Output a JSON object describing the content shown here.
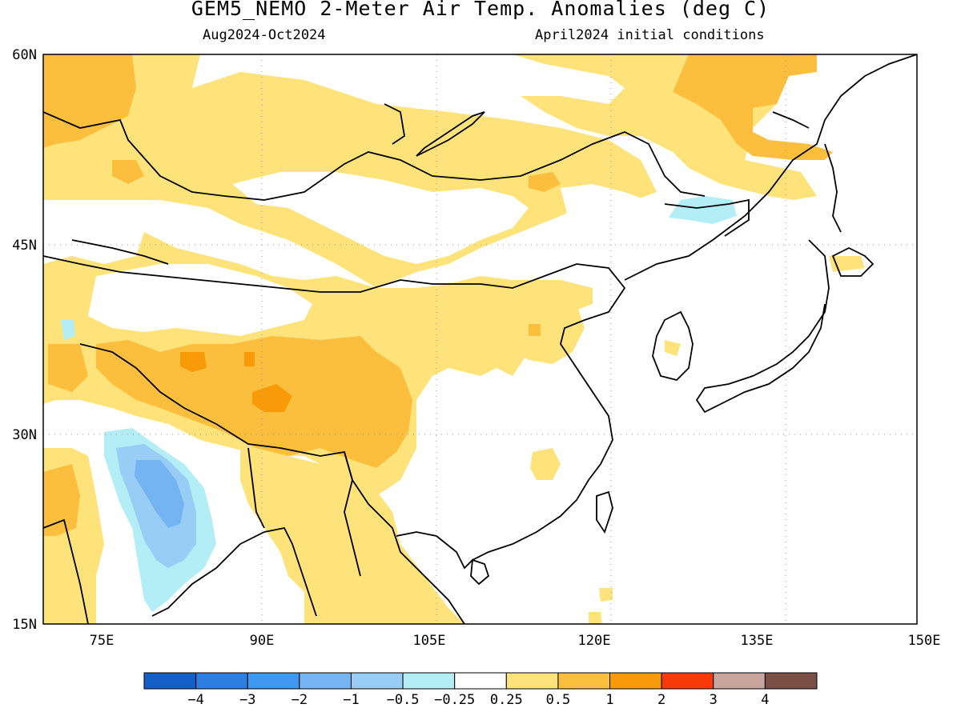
{
  "map": {
    "title": "GEM5_NEMO 2-Meter Air Temp. Anomalies (deg C)",
    "period": "Aug2024-Oct2024",
    "initial_conditions": "April2024 initial conditions",
    "lat_labels": [
      "60N",
      "45N",
      "30N",
      "15N"
    ],
    "lon_labels": [
      "75E",
      "90E",
      "105E",
      "120E",
      "135E",
      "150E"
    ]
  },
  "legend": {
    "colors": [
      "#1560c8",
      "#2c7ee3",
      "#3d98f0",
      "#74b4f2",
      "#98cdf6",
      "#b3eef7",
      "#ffffff",
      "#fde37a",
      "#fbbe3d",
      "#f99b09",
      "#f73a08",
      "#c9a69d",
      "#7a5046"
    ],
    "labels": [
      "−4",
      "−3",
      "−2",
      "−1",
      "−0.5",
      "−0.25",
      "0.25",
      "0.5",
      "1",
      "2",
      "3",
      "4"
    ]
  },
  "palette": {
    "anom_05_025": "#fde37a",
    "anom_1_05": "#fbbe3d",
    "anom_2_1": "#f99b09",
    "anom_neg025_05": "#b3eef7",
    "anom_neg05_1": "#98cdf6",
    "anom_neg1_2": "#74b4f2",
    "coastline": "#000000",
    "grid": "#999999"
  }
}
